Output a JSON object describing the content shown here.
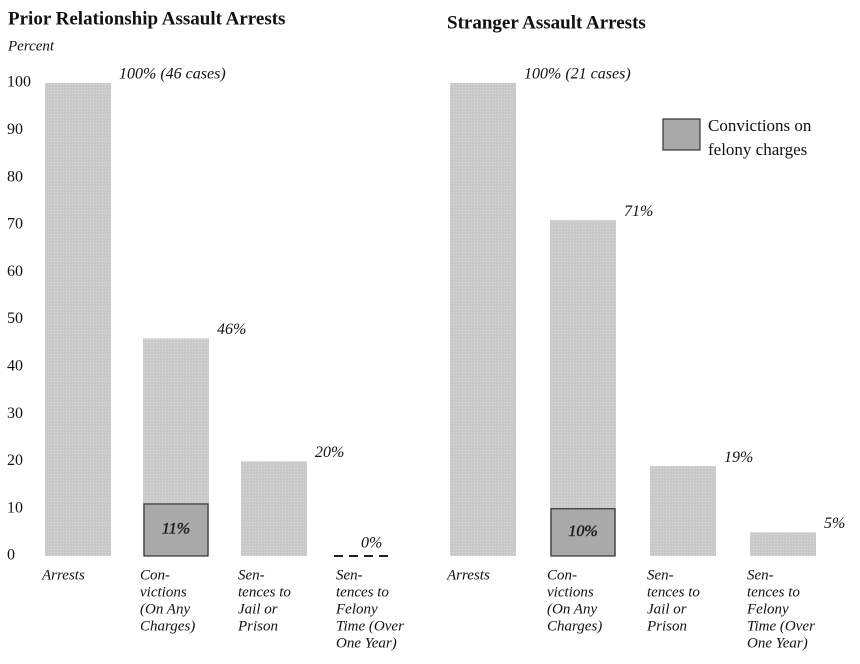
{
  "legend": [
    "Convictions on",
    "felony charges"
  ],
  "chart_data": [
    {
      "type": "bar",
      "title": "Prior Relationship Assault Arrests",
      "y_label": "Percent",
      "categories": [
        [
          "Arrests"
        ],
        [
          "Con-",
          "victions",
          "(On Any",
          "Charges)"
        ],
        [
          "Sen-",
          "tences to",
          "Jail or",
          "Prison"
        ],
        [
          "Sen-",
          "tences to",
          "Felony",
          "Time (Over",
          "One Year)"
        ]
      ],
      "values": [
        100,
        46,
        20,
        0
      ],
      "value_labels": [
        "100% (46 cases)",
        "46%",
        "20%",
        "0%"
      ],
      "felony_values": [
        null,
        11,
        null,
        null
      ],
      "felony_value_labels": [
        null,
        "11%",
        null,
        null
      ],
      "color": "#c9c9c9",
      "felony_color": "#a9a9a9",
      "ylim": [
        0,
        100
      ],
      "yticks": [
        0,
        10,
        20,
        30,
        40,
        50,
        60,
        70,
        80,
        90,
        100
      ]
    },
    {
      "type": "bar",
      "title": "Stranger Assault Arrests",
      "categories": [
        [
          "Arrests"
        ],
        [
          "Con-",
          "victions",
          "(On Any",
          "Charges)"
        ],
        [
          "Sen-",
          "tences to",
          "Jail or",
          "Prison"
        ],
        [
          "Sen-",
          "tences to",
          "Felony",
          "Time (Over",
          "One Year)"
        ]
      ],
      "values": [
        100,
        71,
        19,
        5
      ],
      "value_labels": [
        "100% (21 cases)",
        "71%",
        "19%",
        "5%"
      ],
      "felony_values": [
        null,
        10,
        null,
        null
      ],
      "felony_value_labels": [
        null,
        "10%",
        null,
        null
      ],
      "color": "#c9c9c9",
      "felony_color": "#a9a9a9",
      "ylim": [
        0,
        100
      ]
    }
  ]
}
